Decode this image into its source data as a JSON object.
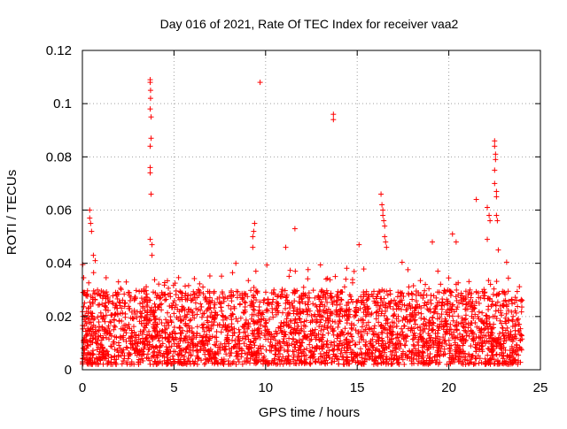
{
  "chart_data": {
    "type": "scatter",
    "title": "Day 016 of 2021, Rate Of TEC Index for receiver vaa2",
    "xlabel": "GPS time / hours",
    "ylabel": "ROTI / TECUs",
    "xlim": [
      0,
      25
    ],
    "ylim": [
      0,
      0.12
    ],
    "xticks": [
      0,
      5,
      10,
      15,
      20,
      25
    ],
    "yticks": [
      0,
      0.02,
      0.04,
      0.06,
      0.08,
      0.1,
      0.12
    ],
    "xtick_labels": [
      "0",
      "5",
      "10",
      "15",
      "20",
      "25"
    ],
    "ytick_labels": [
      "0",
      "0.02",
      "0.04",
      "0.06",
      "0.08",
      "0.1",
      "0.12"
    ],
    "grid": true,
    "marker": "+",
    "color": "#ff0000",
    "series": [
      {
        "name": "ROTI",
        "x_range": [
          0,
          24
        ],
        "baseline_band": [
          0.002,
          0.03
        ],
        "notable_points": [
          {
            "x": 0.4,
            "y": 0.06
          },
          {
            "x": 0.4,
            "y": 0.057
          },
          {
            "x": 0.45,
            "y": 0.055
          },
          {
            "x": 0.5,
            "y": 0.052
          },
          {
            "x": 0.6,
            "y": 0.043
          },
          {
            "x": 0.7,
            "y": 0.041
          },
          {
            "x": 3.7,
            "y": 0.109
          },
          {
            "x": 3.7,
            "y": 0.108
          },
          {
            "x": 3.72,
            "y": 0.105
          },
          {
            "x": 3.72,
            "y": 0.102
          },
          {
            "x": 3.7,
            "y": 0.098
          },
          {
            "x": 3.75,
            "y": 0.095
          },
          {
            "x": 3.75,
            "y": 0.087
          },
          {
            "x": 3.7,
            "y": 0.084
          },
          {
            "x": 3.7,
            "y": 0.076
          },
          {
            "x": 3.7,
            "y": 0.074
          },
          {
            "x": 3.75,
            "y": 0.066
          },
          {
            "x": 3.7,
            "y": 0.049
          },
          {
            "x": 3.8,
            "y": 0.047
          },
          {
            "x": 3.8,
            "y": 0.043
          },
          {
            "x": 9.3,
            "y": 0.05
          },
          {
            "x": 9.35,
            "y": 0.052
          },
          {
            "x": 9.4,
            "y": 0.055
          },
          {
            "x": 9.3,
            "y": 0.046
          },
          {
            "x": 9.7,
            "y": 0.108
          },
          {
            "x": 11.1,
            "y": 0.046
          },
          {
            "x": 11.6,
            "y": 0.053
          },
          {
            "x": 13.7,
            "y": 0.096
          },
          {
            "x": 13.7,
            "y": 0.094
          },
          {
            "x": 15.1,
            "y": 0.047
          },
          {
            "x": 16.3,
            "y": 0.066
          },
          {
            "x": 16.35,
            "y": 0.062
          },
          {
            "x": 16.4,
            "y": 0.06
          },
          {
            "x": 16.4,
            "y": 0.058
          },
          {
            "x": 16.45,
            "y": 0.056
          },
          {
            "x": 16.5,
            "y": 0.054
          },
          {
            "x": 16.5,
            "y": 0.05
          },
          {
            "x": 16.55,
            "y": 0.048
          },
          {
            "x": 16.6,
            "y": 0.046
          },
          {
            "x": 19.1,
            "y": 0.048
          },
          {
            "x": 20.2,
            "y": 0.051
          },
          {
            "x": 20.4,
            "y": 0.048
          },
          {
            "x": 21.5,
            "y": 0.064
          },
          {
            "x": 22.1,
            "y": 0.061
          },
          {
            "x": 22.2,
            "y": 0.058
          },
          {
            "x": 22.25,
            "y": 0.056
          },
          {
            "x": 22.1,
            "y": 0.049
          },
          {
            "x": 22.5,
            "y": 0.086
          },
          {
            "x": 22.5,
            "y": 0.084
          },
          {
            "x": 22.55,
            "y": 0.081
          },
          {
            "x": 22.55,
            "y": 0.079
          },
          {
            "x": 22.5,
            "y": 0.075
          },
          {
            "x": 22.5,
            "y": 0.07
          },
          {
            "x": 22.6,
            "y": 0.067
          },
          {
            "x": 22.6,
            "y": 0.065
          },
          {
            "x": 22.6,
            "y": 0.058
          },
          {
            "x": 22.65,
            "y": 0.056
          },
          {
            "x": 22.7,
            "y": 0.045
          }
        ]
      }
    ]
  }
}
